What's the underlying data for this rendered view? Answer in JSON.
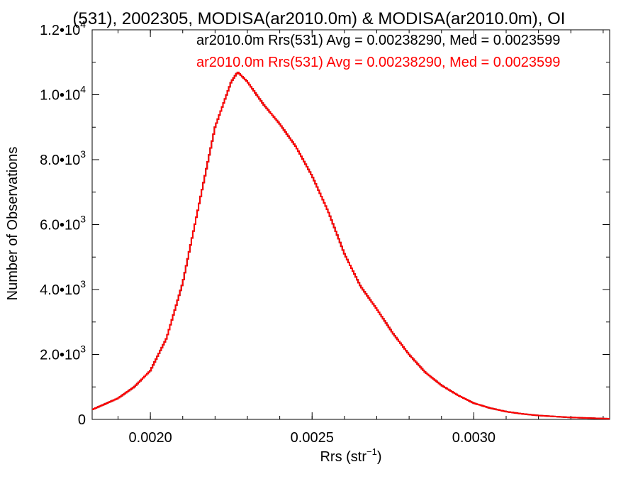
{
  "chart_data": {
    "type": "step-histogram",
    "title": "(531), 2002305, MODISA(ar2010.0m) & MODISA(ar2010.0m), OI",
    "xlabel": "Rrs (str",
    "xlabel_exp": "−1",
    "xlabel_close": ")",
    "ylabel": "Number of Observations",
    "xlim": [
      0.00182,
      0.00342
    ],
    "ylim": [
      0,
      12000
    ],
    "x_ticks": [
      {
        "value": 0.002,
        "label": "0.0020"
      },
      {
        "value": 0.0025,
        "label": "0.0025"
      },
      {
        "value": 0.003,
        "label": "0.0030"
      }
    ],
    "y_ticks": [
      {
        "value": 0,
        "mant": "0",
        "exp": ""
      },
      {
        "value": 2000,
        "mant": "2.0•10",
        "exp": "3"
      },
      {
        "value": 4000,
        "mant": "4.0•10",
        "exp": "3"
      },
      {
        "value": 6000,
        "mant": "6.0•10",
        "exp": "3"
      },
      {
        "value": 8000,
        "mant": "8.0•10",
        "exp": "3"
      },
      {
        "value": 10000,
        "mant": "1.0•10",
        "exp": "4"
      },
      {
        "value": 12000,
        "mant": "1.2•10",
        "exp": "4"
      }
    ],
    "legend_position": "top-right",
    "series": [
      {
        "name": "ar2010.0m Rrs(531) Avg = 0.00238290, Med = 0.0023599",
        "color": "#000000",
        "x": [
          0.00182,
          0.0019,
          0.00195,
          0.002,
          0.00205,
          0.0021,
          0.00215,
          0.0022,
          0.00225,
          0.00227,
          0.0023,
          0.00235,
          0.0024,
          0.00245,
          0.0025,
          0.00255,
          0.0026,
          0.00265,
          0.0027,
          0.00275,
          0.0028,
          0.00285,
          0.0029,
          0.00295,
          0.003,
          0.00305,
          0.0031,
          0.00315,
          0.0032,
          0.0033,
          0.00342
        ],
        "y": [
          300,
          650,
          1000,
          1500,
          2500,
          4200,
          6600,
          9000,
          10400,
          10700,
          10400,
          9700,
          9100,
          8400,
          7500,
          6400,
          5100,
          4100,
          3400,
          2650,
          2000,
          1450,
          1050,
          750,
          500,
          350,
          240,
          170,
          120,
          60,
          20
        ]
      },
      {
        "name": "ar2010.0m Rrs(531) Avg = 0.00238290, Med = 0.0023599",
        "color": "#ff0000",
        "x": [
          0.00182,
          0.0019,
          0.00195,
          0.002,
          0.00205,
          0.0021,
          0.00215,
          0.0022,
          0.00225,
          0.00227,
          0.0023,
          0.00235,
          0.0024,
          0.00245,
          0.0025,
          0.00255,
          0.0026,
          0.00265,
          0.0027,
          0.00275,
          0.0028,
          0.00285,
          0.0029,
          0.00295,
          0.003,
          0.00305,
          0.0031,
          0.00315,
          0.0032,
          0.0033,
          0.00342
        ],
        "y": [
          300,
          650,
          1000,
          1500,
          2500,
          4200,
          6600,
          9000,
          10400,
          10700,
          10400,
          9700,
          9100,
          8400,
          7500,
          6400,
          5100,
          4100,
          3400,
          2650,
          2000,
          1450,
          1050,
          750,
          500,
          350,
          240,
          170,
          120,
          60,
          20
        ]
      }
    ]
  }
}
